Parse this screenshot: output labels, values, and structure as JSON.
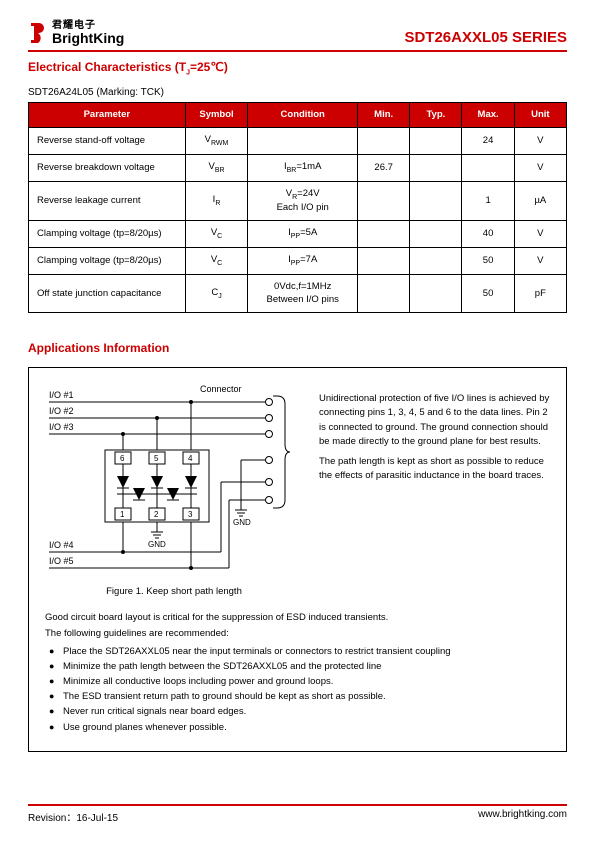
{
  "header": {
    "logo_cn": "君耀电子",
    "logo_en": "BrightKing",
    "series": "SDT26AXXL05  SERIES"
  },
  "elec": {
    "title": "Electrical Characteristics (TJ=25℃)",
    "subheading": "SDT26A24L05 (Marking: TCK)",
    "columns": [
      "Parameter",
      "Symbol",
      "Condition",
      "Min.",
      "Typ.",
      "Max.",
      "Unit"
    ],
    "rows": [
      {
        "param": "Reverse stand-off voltage",
        "sym": "V<sub class='sub-s'>RWM</sub>",
        "cond": "",
        "min": "",
        "typ": "",
        "max": "24",
        "unit": "V"
      },
      {
        "param": "Reverse breakdown voltage",
        "sym": "V<sub class='sub-s'>BR</sub>",
        "cond": "I<sub class='sub-s'>BR</sub>=1mA",
        "min": "26.7",
        "typ": "",
        "max": "",
        "unit": "V"
      },
      {
        "param": "Reverse leakage current",
        "sym": "I<sub class='sub-s'>R</sub>",
        "cond": "V<sub class='sub-s'>R</sub>=24V<br>Each I/O pin",
        "min": "",
        "typ": "",
        "max": "1",
        "unit": "µA"
      },
      {
        "param": "Clamping voltage (tp=8/20µs)",
        "sym": "V<sub class='sub-s'>C</sub>",
        "cond": "I<sub class='sub-s'>PP</sub>=5A",
        "min": "",
        "typ": "",
        "max": "40",
        "unit": "V"
      },
      {
        "param": "Clamping voltage (tp=8/20µs)",
        "sym": "V<sub class='sub-s'>C</sub>",
        "cond": "I<sub class='sub-s'>PP</sub>=7A",
        "min": "",
        "typ": "",
        "max": "50",
        "unit": "V"
      },
      {
        "param": "Off state junction capacitance",
        "sym": "C<sub class='sub-s'>J</sub>",
        "cond": "0Vdc,f=1MHz<br>Between I/O pins",
        "min": "",
        "typ": "",
        "max": "50",
        "unit": "pF"
      }
    ]
  },
  "app": {
    "title": "Applications Information",
    "io_labels": [
      "I/O #1",
      "I/O #2",
      "I/O #3",
      "I/O #4",
      "I/O #5"
    ],
    "connector_label": "Connector",
    "gnd_label": "GND",
    "pin_labels": [
      "6",
      "5",
      "4",
      "1",
      "2",
      "3"
    ],
    "fig_caption": "Figure 1. Keep short path length",
    "desc_p1": "Unidirectional protection of five I/O lines is achieved by connecting pins 1, 3, 4, 5 and 6 to the data lines. Pin 2 is connected to ground. The ground connection should be made directly to the ground plane for best results.",
    "desc_p2": "The path length is kept as short as possible to reduce the effects of parasitic inductance in the board traces.",
    "guide_intro1": "Good circuit board layout is critical for the suppression of ESD induced transients.",
    "guide_intro2": "The following guidelines are recommended:",
    "bullets": [
      "Place the SDT26AXXL05 near the input terminals or connectors to restrict transient coupling",
      "Minimize the path length between the SDT26AXXL05 and the protected line",
      "Minimize all conductive loops including power and ground loops.",
      "The ESD transient return path to ground should be kept as short as possible.",
      "Never run critical signals near board edges.",
      "Use ground planes whenever possible."
    ]
  },
  "footer": {
    "revision": "Revision：16-Jul-15",
    "url": "www.brightking.com"
  },
  "colors": {
    "accent": "#cc0000",
    "text": "#000000",
    "bg": "#ffffff"
  }
}
